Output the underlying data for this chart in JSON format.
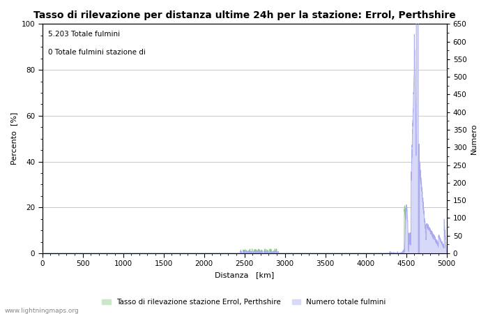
{
  "title": "Tasso di rilevazione per distanza ultime 24h per la stazione: Errol, Perthshire",
  "xlabel": "Distanza   [km]",
  "ylabel_left": "Percento  [%]",
  "ylabel_right": "Numero",
  "annotation_line1": "5.203 Totale fulmini",
  "annotation_line2": "0 Totale fulmini stazione di",
  "xlim": [
    0,
    5000
  ],
  "ylim_left": [
    0,
    100
  ],
  "ylim_right": [
    0,
    650
  ],
  "xticks": [
    0,
    500,
    1000,
    1500,
    2000,
    2500,
    3000,
    3500,
    4000,
    4500,
    5000
  ],
  "yticks_left": [
    0,
    20,
    40,
    60,
    80,
    100
  ],
  "yticks_right": [
    0,
    50,
    100,
    150,
    200,
    250,
    300,
    350,
    400,
    450,
    500,
    550,
    600,
    650
  ],
  "legend_label_green": "Tasso di rilevazione stazione Errol, Perthshire",
  "legend_label_blue": "Numero totale fulmini",
  "bg_color": "#ffffff",
  "plot_bg_color": "#ffffff",
  "grid_color": "#c0c0c0",
  "line_color": "#aaaaee",
  "fill_color": "#d8d8f8",
  "green_fill_color": "#c8e8c8",
  "watermark": "www.lightningmaps.org",
  "title_fontsize": 10,
  "axis_fontsize": 8,
  "tick_fontsize": 7.5
}
